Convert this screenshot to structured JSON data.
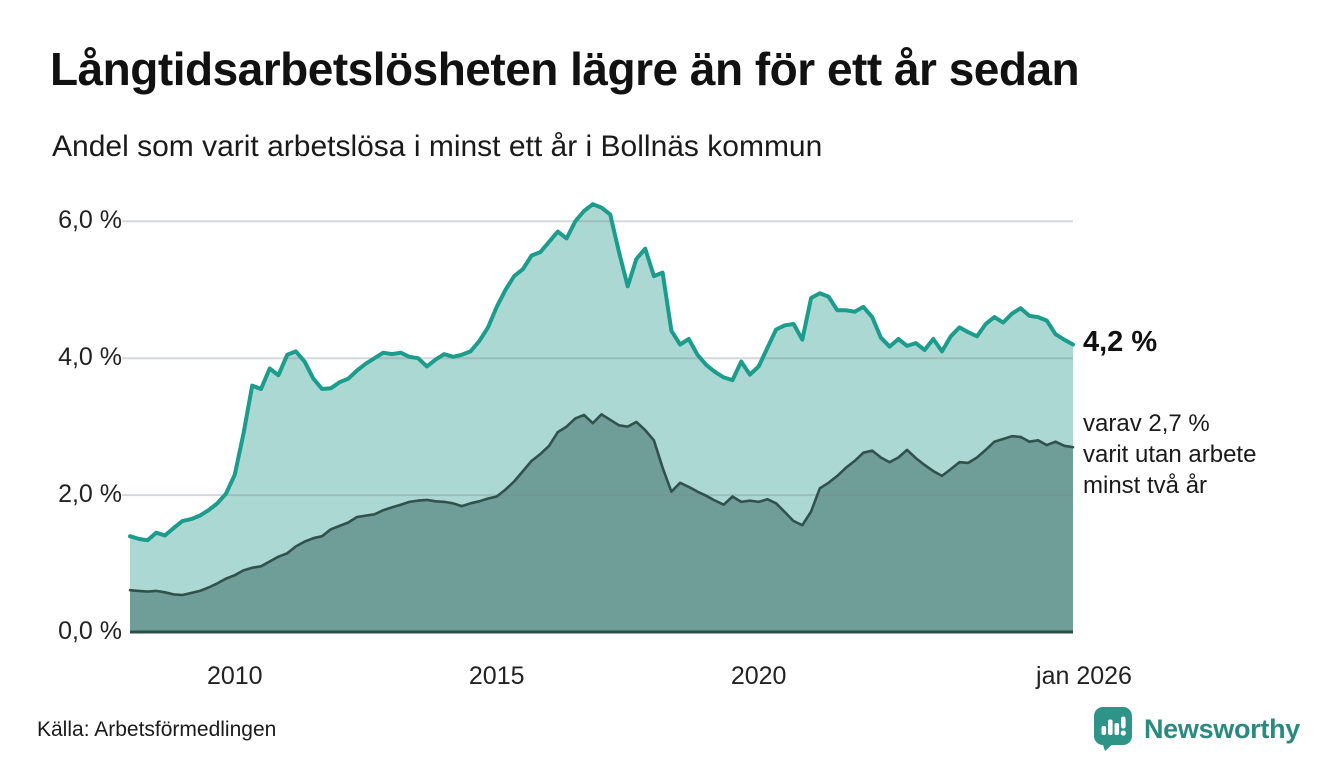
{
  "header": {
    "title": "Långtidsarbetslösheten lägre än för ett år sedan",
    "subtitle": "Andel som varit arbetslösa i minst ett år i Bollnäs kommun"
  },
  "chart_data": {
    "type": "area",
    "x_start_year": 2008,
    "x_end_year": 2026,
    "points_per_year": 6,
    "ylim": [
      0,
      6.5
    ],
    "grid": true,
    "y_ticks": [
      {
        "label": "0,0 %",
        "value": 0
      },
      {
        "label": "2,0 %",
        "value": 2
      },
      {
        "label": "4,0 %",
        "value": 4
      },
      {
        "label": "6,0 %",
        "value": 6
      }
    ],
    "x_ticks": [
      {
        "label": "2010",
        "year": 2010
      },
      {
        "label": "2015",
        "year": 2015
      },
      {
        "label": "2020",
        "year": 2020
      },
      {
        "label": "jan 2026",
        "year": 2026
      }
    ],
    "series": [
      {
        "name": "arbetslösa minst ett år",
        "line_color": "#1b9c8d",
        "fill_color": "#abd8d2",
        "line_width": 4,
        "end_value": 4.2,
        "values": [
          1.4,
          1.36,
          1.34,
          1.45,
          1.41,
          1.52,
          1.62,
          1.65,
          1.7,
          1.78,
          1.88,
          2.02,
          2.3,
          2.9,
          3.6,
          3.55,
          3.85,
          3.75,
          4.05,
          4.1,
          3.95,
          3.7,
          3.55,
          3.56,
          3.65,
          3.7,
          3.82,
          3.92,
          4.0,
          4.08,
          4.06,
          4.08,
          4.02,
          4.0,
          3.88,
          3.98,
          4.06,
          4.02,
          4.05,
          4.1,
          4.25,
          4.45,
          4.75,
          5.0,
          5.2,
          5.3,
          5.5,
          5.55,
          5.7,
          5.85,
          5.75,
          6.0,
          6.15,
          6.25,
          6.2,
          6.1,
          5.55,
          5.05,
          5.45,
          5.6,
          5.2,
          5.25,
          4.4,
          4.2,
          4.28,
          4.05,
          3.9,
          3.8,
          3.72,
          3.68,
          3.95,
          3.76,
          3.88,
          4.15,
          4.42,
          4.48,
          4.5,
          4.27,
          4.88,
          4.95,
          4.9,
          4.7,
          4.7,
          4.68,
          4.75,
          4.6,
          4.3,
          4.17,
          4.28,
          4.18,
          4.22,
          4.12,
          4.28,
          4.1,
          4.32,
          4.45,
          4.38,
          4.32,
          4.5,
          4.6,
          4.52,
          4.65,
          4.73,
          4.62,
          4.6,
          4.55,
          4.35,
          4.27,
          4.2
        ]
      },
      {
        "name": "arbetslösa minst två år",
        "line_color": "#33514c",
        "fill_color": "#6f9e98",
        "line_width": 2.6,
        "end_value": 2.7,
        "values": [
          0.61,
          0.6,
          0.59,
          0.6,
          0.58,
          0.55,
          0.54,
          0.57,
          0.6,
          0.65,
          0.71,
          0.78,
          0.83,
          0.9,
          0.94,
          0.96,
          1.03,
          1.1,
          1.15,
          1.25,
          1.32,
          1.37,
          1.4,
          1.5,
          1.55,
          1.6,
          1.68,
          1.7,
          1.72,
          1.78,
          1.82,
          1.86,
          1.9,
          1.92,
          1.93,
          1.91,
          1.9,
          1.88,
          1.84,
          1.88,
          1.91,
          1.95,
          1.98,
          2.08,
          2.2,
          2.35,
          2.5,
          2.6,
          2.72,
          2.92,
          3.0,
          3.12,
          3.17,
          3.05,
          3.18,
          3.1,
          3.02,
          3.0,
          3.07,
          2.95,
          2.8,
          2.4,
          2.05,
          2.18,
          2.12,
          2.05,
          1.99,
          1.92,
          1.86,
          1.98,
          1.9,
          1.92,
          1.9,
          1.94,
          1.88,
          1.75,
          1.62,
          1.56,
          1.76,
          2.1,
          2.18,
          2.28,
          2.4,
          2.5,
          2.62,
          2.65,
          2.55,
          2.48,
          2.55,
          2.66,
          2.54,
          2.44,
          2.35,
          2.28,
          2.38,
          2.48,
          2.47,
          2.55,
          2.66,
          2.78,
          2.82,
          2.86,
          2.85,
          2.78,
          2.8,
          2.73,
          2.78,
          2.72,
          2.7
        ]
      }
    ],
    "gridline_color": "rgba(125,135,140,0.32)",
    "baseline_color": "#2e4d48"
  },
  "annotations": {
    "end_value_label": "4,2 %",
    "sub_line_1": "varav 2,7 %",
    "sub_line_2": "varit utan arbete",
    "sub_line_3": "minst två år"
  },
  "footer": {
    "source": "Källa: Arbetsförmedlingen",
    "brand": "Newsworthy",
    "brand_color": "#2b8a80",
    "logo_icon": "bar-chart-speech-bubble"
  }
}
